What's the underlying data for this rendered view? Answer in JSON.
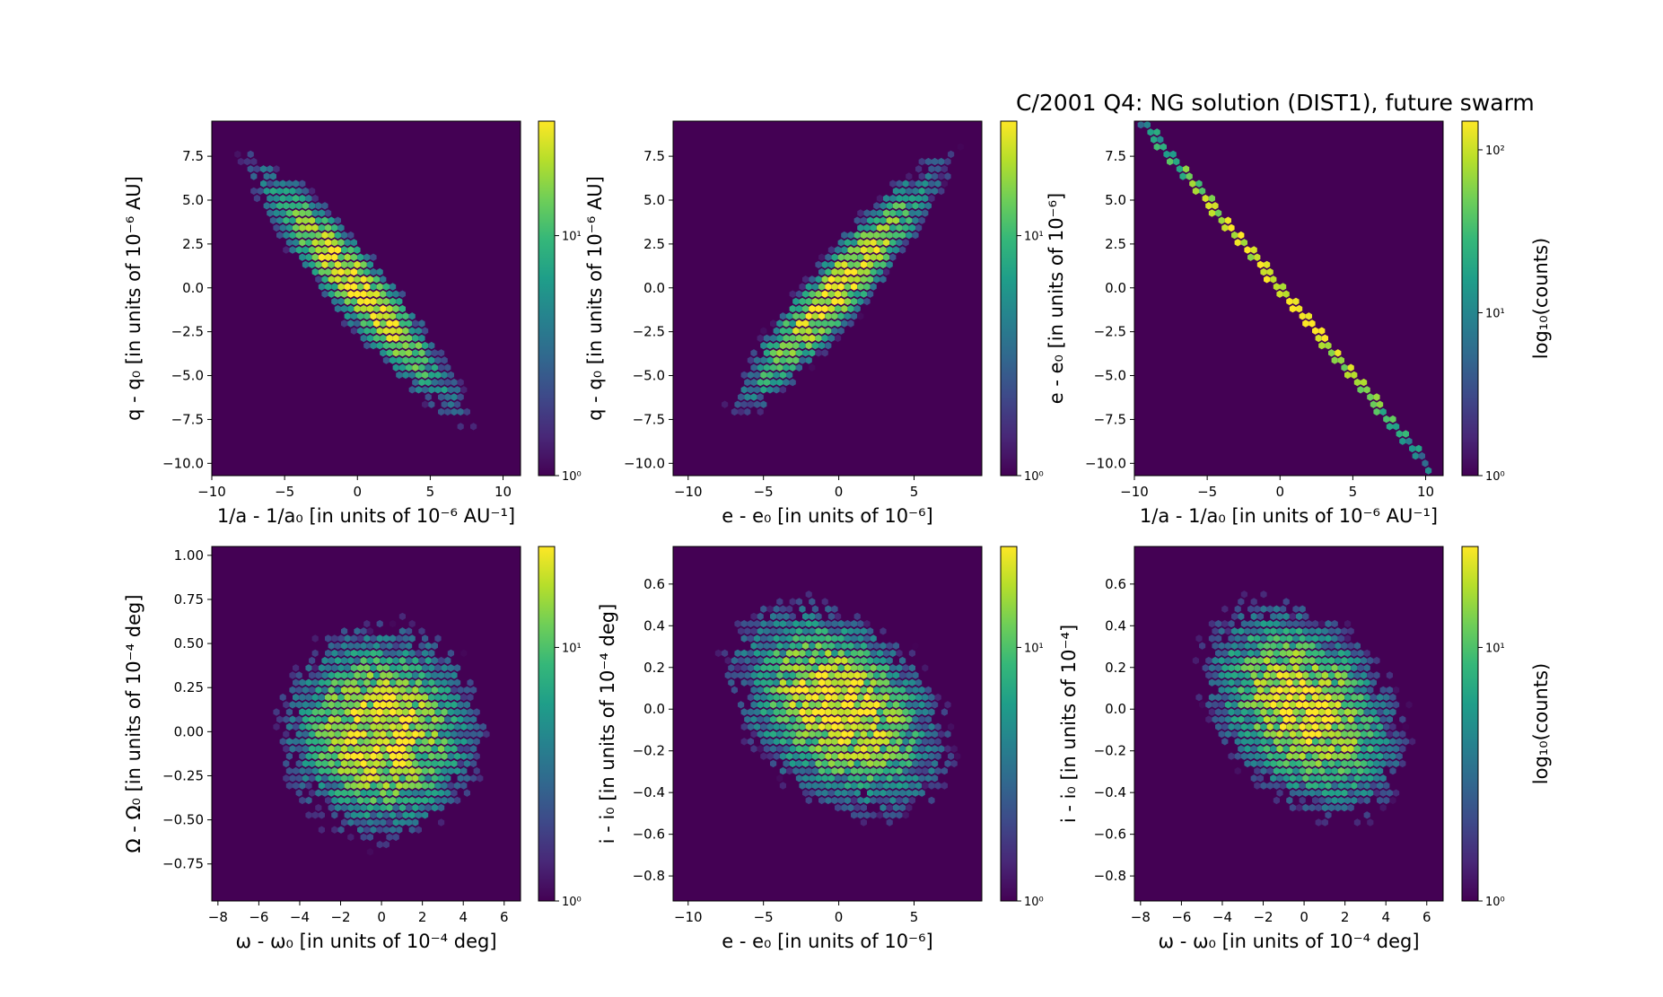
{
  "figure": {
    "title": "C/2001 Q4:  NG solution (DIST1), future swarm",
    "colorbar_label": "log₁₀(counts)",
    "colormap": [
      "#440154",
      "#482878",
      "#3e4989",
      "#31688e",
      "#26828e",
      "#1f9e89",
      "#35b779",
      "#6ece58",
      "#b5de2b",
      "#fde725"
    ]
  },
  "chart_data": [
    {
      "type": "heatmap",
      "subtype": "hexbin",
      "xlabel": "1/a - 1/a₀ [in units of 10⁻⁶ AU⁻¹]",
      "ylabel": "q - q₀ [in units of 10⁻⁶ AU]",
      "xlim": [
        -10,
        11.2
      ],
      "ylim": [
        -10.7,
        9.5
      ],
      "xticks": [
        -10,
        -5,
        0,
        5,
        10
      ],
      "xticklabels": [
        "−10",
        "−5",
        "0",
        "5",
        "10"
      ],
      "yticks": [
        7.5,
        5.0,
        2.5,
        0.0,
        -2.5,
        -5.0,
        -7.5,
        -10.0
      ],
      "yticklabels": [
        "7.5",
        "5.0",
        "2.5",
        "0.0",
        "−2.5",
        "−5.0",
        "−7.5",
        "−10.0"
      ],
      "colorbar": {
        "scale": "log",
        "min": 1,
        "max": 30,
        "ticks": [
          1,
          10
        ],
        "ticklabels": [
          "10⁰",
          "10¹"
        ],
        "label": ""
      },
      "distribution": {
        "mean": [
          0,
          0
        ],
        "std": [
          3.1,
          3.1
        ],
        "correlation": -0.93,
        "peak_count": 30
      }
    },
    {
      "type": "heatmap",
      "subtype": "hexbin",
      "xlabel": "e - e₀ [in units of 10⁻⁶]",
      "ylabel": "q - q₀ [in units of 10⁻⁶ AU]",
      "xlim": [
        -11,
        9.5
      ],
      "ylim": [
        -10.7,
        9.5
      ],
      "xticks": [
        -10,
        -5,
        0,
        5
      ],
      "xticklabels": [
        "−10",
        "−5",
        "0",
        "5"
      ],
      "yticks": [
        7.5,
        5.0,
        2.5,
        0.0,
        -2.5,
        -5.0,
        -7.5,
        -10.0
      ],
      "yticklabels": [
        "7.5",
        "5.0",
        "2.5",
        "0.0",
        "−2.5",
        "−5.0",
        "−7.5",
        "−10.0"
      ],
      "colorbar": {
        "scale": "log",
        "min": 1,
        "max": 30,
        "ticks": [
          1,
          10
        ],
        "ticklabels": [
          "10⁰",
          "10¹"
        ],
        "label": ""
      },
      "distribution": {
        "mean": [
          0,
          0
        ],
        "std": [
          3.0,
          3.1
        ],
        "correlation": 0.93,
        "peak_count": 30
      }
    },
    {
      "type": "heatmap",
      "subtype": "hexbin",
      "xlabel": "1/a - 1/a₀ [in units of 10⁻⁶ AU⁻¹]",
      "ylabel": "e - e₀ [in units of 10⁻⁶]",
      "xlim": [
        -10,
        11.2
      ],
      "ylim": [
        -10.7,
        9.5
      ],
      "xticks": [
        -10,
        -5,
        0,
        5,
        10
      ],
      "xticklabels": [
        "−10",
        "−5",
        "0",
        "5",
        "10"
      ],
      "yticks": [
        7.5,
        5.0,
        2.5,
        0.0,
        -2.5,
        -5.0,
        -7.5,
        -10.0
      ],
      "yticklabels": [
        "7.5",
        "5.0",
        "2.5",
        "0.0",
        "−2.5",
        "−5.0",
        "−7.5",
        "−10.0"
      ],
      "colorbar": {
        "scale": "log",
        "min": 1,
        "max": 150,
        "ticks": [
          1,
          10,
          100
        ],
        "ticklabels": [
          "10⁰",
          "10¹",
          "10²"
        ],
        "label": "log₁₀(counts)"
      },
      "line": {
        "slope": -1.0,
        "x_start": -10.5,
        "x_end": 10.2,
        "peak_count": 150,
        "spread": 3.0
      }
    },
    {
      "type": "heatmap",
      "subtype": "hexbin",
      "xlabel": "ω - ω₀ [in units of 10⁻⁴ deg]",
      "ylabel": "Ω - Ω₀ [in units of 10⁻⁴ deg]",
      "xlim": [
        -8.3,
        6.8
      ],
      "ylim": [
        -0.96,
        1.05
      ],
      "xticks": [
        -8,
        -6,
        -4,
        -2,
        0,
        2,
        4,
        6
      ],
      "xticklabels": [
        "−8",
        "−6",
        "−4",
        "−2",
        "0",
        "2",
        "4",
        "6"
      ],
      "yticks": [
        1.0,
        0.75,
        0.5,
        0.25,
        0.0,
        -0.25,
        -0.5,
        -0.75
      ],
      "yticklabels": [
        "1.00",
        "0.75",
        "0.50",
        "0.25",
        "0.00",
        "−0.25",
        "−0.50",
        "−0.75"
      ],
      "colorbar": {
        "scale": "log",
        "min": 1,
        "max": 25,
        "ticks": [
          1,
          10
        ],
        "ticklabels": [
          "10⁰",
          "10¹"
        ],
        "label": ""
      },
      "distribution": {
        "mean": [
          0,
          0
        ],
        "std": [
          2.1,
          0.26
        ],
        "correlation": 0.0,
        "peak_count": 25
      }
    },
    {
      "type": "heatmap",
      "subtype": "hexbin",
      "xlabel": "e - e₀ [in units of 10⁻⁶]",
      "ylabel": "i - i₀ [in units of 10⁻⁴ deg]",
      "xlim": [
        -11,
        9.5
      ],
      "ylim": [
        -0.92,
        0.78
      ],
      "xticks": [
        -10,
        -5,
        0,
        5
      ],
      "xticklabels": [
        "−10",
        "−5",
        "0",
        "5"
      ],
      "yticks": [
        0.6,
        0.4,
        0.2,
        0.0,
        -0.2,
        -0.4,
        -0.6,
        -0.8
      ],
      "yticklabels": [
        "0.6",
        "0.4",
        "0.2",
        "0.0",
        "−0.2",
        "−0.4",
        "−0.6",
        "−0.8"
      ],
      "colorbar": {
        "scale": "log",
        "min": 1,
        "max": 25,
        "ticks": [
          1,
          10
        ],
        "ticklabels": [
          "10⁰",
          "10¹"
        ],
        "label": ""
      },
      "distribution": {
        "mean": [
          0,
          0
        ],
        "std": [
          3.1,
          0.22
        ],
        "correlation": -0.35,
        "peak_count": 25
      }
    },
    {
      "type": "heatmap",
      "subtype": "hexbin",
      "xlabel": "ω - ω₀ [in units of 10⁻⁴ deg]",
      "ylabel": "i - i₀ [in units of 10⁻⁴]",
      "xlim": [
        -8.3,
        6.8
      ],
      "ylim": [
        -0.92,
        0.78
      ],
      "xticks": [
        -8,
        -6,
        -4,
        -2,
        0,
        2,
        4,
        6
      ],
      "xticklabels": [
        "−8",
        "−6",
        "−4",
        "−2",
        "0",
        "2",
        "4",
        "6"
      ],
      "yticks": [
        0.6,
        0.4,
        0.2,
        0.0,
        -0.2,
        -0.4,
        -0.6,
        -0.8
      ],
      "yticklabels": [
        "0.6",
        "0.4",
        "0.2",
        "0.0",
        "−0.2",
        "−0.4",
        "−0.6",
        "−0.8"
      ],
      "colorbar": {
        "scale": "log",
        "min": 1,
        "max": 25,
        "ticks": [
          1,
          10
        ],
        "ticklabels": [
          "10⁰",
          "10¹"
        ],
        "label": "log₁₀(counts)"
      },
      "distribution": {
        "mean": [
          0,
          0
        ],
        "std": [
          2.1,
          0.22
        ],
        "correlation": -0.35,
        "peak_count": 25
      }
    }
  ]
}
